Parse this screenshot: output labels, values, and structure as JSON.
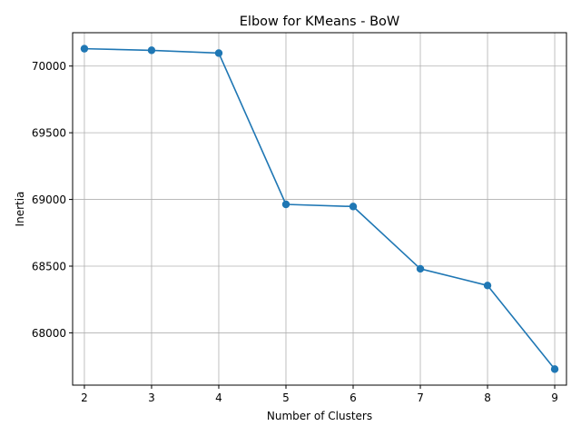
{
  "chart_data": {
    "type": "line",
    "title": "Elbow for KMeans - BoW",
    "xlabel": "Number of Clusters",
    "ylabel": "Inertia",
    "x": [
      2,
      3,
      4,
      5,
      6,
      7,
      8,
      9
    ],
    "series": [
      {
        "values": [
          70130,
          70118,
          70097,
          68963,
          68947,
          68480,
          68355,
          67728
        ],
        "color": "#1f77b4",
        "marker": "circle"
      }
    ],
    "xlim": [
      1.825,
      9.175
    ],
    "ylim": [
      67608,
      70250
    ],
    "xticks": [
      2,
      3,
      4,
      5,
      6,
      7,
      8,
      9
    ],
    "yticks": [
      68000,
      68500,
      69000,
      69500,
      70000
    ],
    "grid": true
  }
}
